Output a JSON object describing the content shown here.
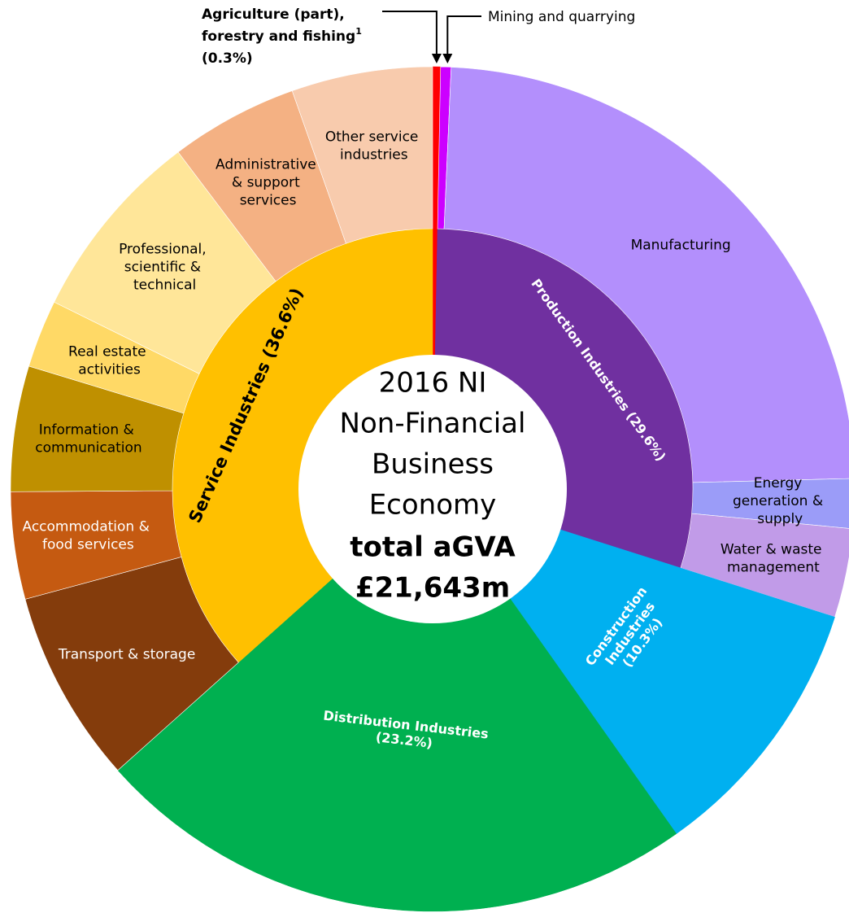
{
  "chart_data": {
    "type": "sunburst",
    "center_text": [
      "2016 NI",
      "Non-Financial",
      "Business",
      "Economy"
    ],
    "center_total": [
      "total aGVA",
      "£21,643m"
    ],
    "groups": [
      {
        "name": "Agriculture (part), forestry and fishing",
        "footnote": "1",
        "value": 0.3,
        "value_label": "(0.3%)",
        "color": "#ff0000",
        "label_color": "#000000",
        "children": []
      },
      {
        "name": "Production Industries",
        "value": 29.6,
        "value_label": "(29.6%)",
        "color": "#7030a0",
        "label_color": "#ffffff",
        "children": [
          {
            "name": "Mining and quarrying",
            "value": 0.4,
            "color": "#cc00ff",
            "label_color": "#000000"
          },
          {
            "name": "Manufacturing",
            "value": 23.9,
            "color": "#b38ffc",
            "label_color": "#000000"
          },
          {
            "name": "Energy generation & supply",
            "value": 1.9,
            "color": "#9b9cf8",
            "label_color": "#000000"
          },
          {
            "name": "Water & waste management",
            "value": 3.4,
            "color": "#c19be8",
            "label_color": "#000000"
          }
        ]
      },
      {
        "name": "Construction Industries",
        "value": 10.3,
        "value_label": "(10.3%)",
        "color": "#00b0f0",
        "label_color": "#ffffff",
        "children": []
      },
      {
        "name": "Distribution Industries",
        "value": 23.2,
        "value_label": "(23.2%)",
        "color": "#00b050",
        "label_color": "#ffffff",
        "children": []
      },
      {
        "name": "Service Industries",
        "value": 36.6,
        "value_label": "(36.6%)",
        "color": "#ffc000",
        "label_color": "#000000",
        "children": [
          {
            "name": "Transport & storage",
            "value": 7.4,
            "color": "#843c0c",
            "label_color": "#ffffff"
          },
          {
            "name": "Accommodation & food services",
            "value": 4.1,
            "color": "#c55a11",
            "label_color": "#ffffff"
          },
          {
            "name": "Information & communication",
            "value": 4.8,
            "color": "#bf9000",
            "label_color": "#000000"
          },
          {
            "name": "Real estate activities",
            "value": 2.6,
            "color": "#ffd966",
            "label_color": "#000000"
          },
          {
            "name": "Professional, scientific & technical",
            "value": 7.4,
            "color": "#ffe699",
            "label_color": "#000000"
          },
          {
            "name": "Administrative & support services",
            "value": 4.9,
            "color": "#f4b183",
            "label_color": "#000000"
          },
          {
            "name": "Other service industries",
            "value": 5.4,
            "color": "#f8cbad",
            "label_color": "#000000"
          }
        ]
      }
    ]
  }
}
